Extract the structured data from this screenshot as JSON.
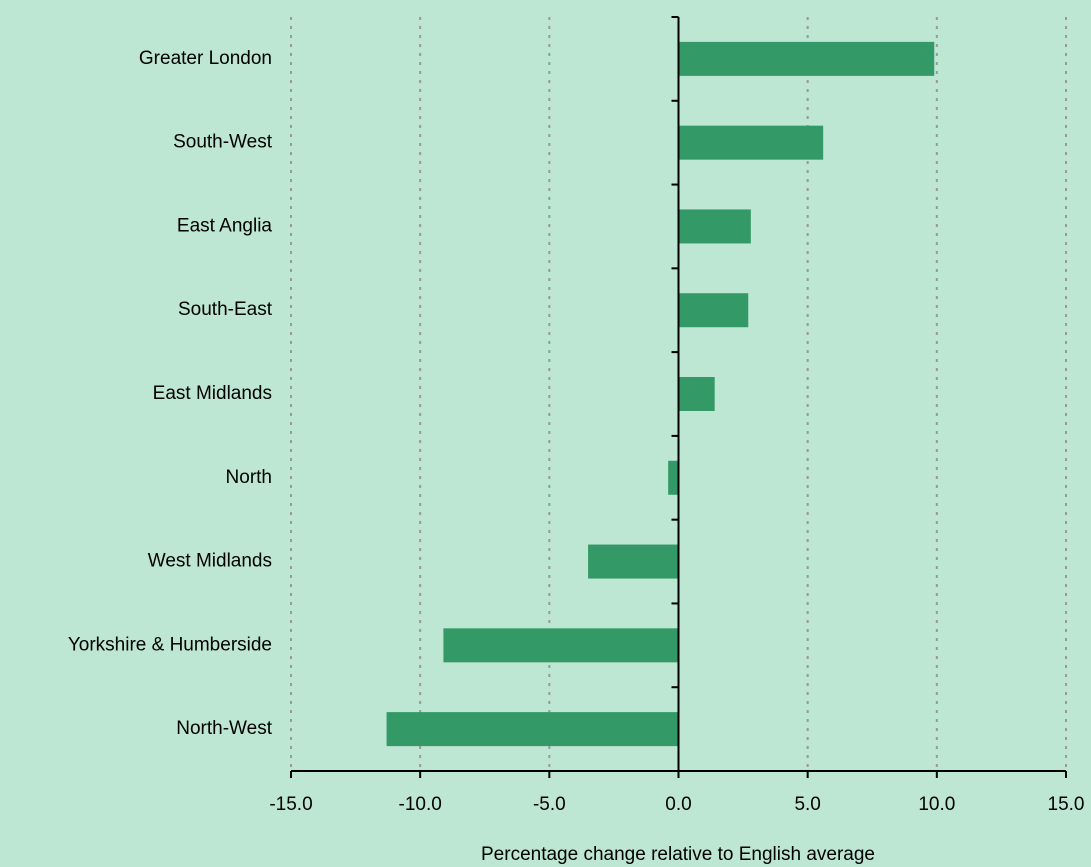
{
  "chart_data": {
    "type": "bar",
    "orientation": "horizontal",
    "x_label": "Percentage change relative to English average",
    "categories": [
      "Greater London",
      "South-West",
      "East Anglia",
      "South-East",
      "East Midlands",
      "North",
      "West Midlands",
      "Yorkshire & Humberside",
      "North-West"
    ],
    "values": [
      9.9,
      5.6,
      2.8,
      2.7,
      1.4,
      -0.4,
      -3.5,
      -9.1,
      -11.3
    ],
    "color": "#339966",
    "xlim": [
      -15,
      15
    ],
    "xticks": [
      {
        "value": -15,
        "label": "-15.0"
      },
      {
        "value": -10,
        "label": "-10.0"
      },
      {
        "value": -5,
        "label": "-5.0"
      },
      {
        "value": 0,
        "label": "0.0"
      },
      {
        "value": 5,
        "label": "5.0"
      },
      {
        "value": 10,
        "label": "10.0"
      },
      {
        "value": 15,
        "label": "15.0"
      }
    ],
    "grid": true
  }
}
